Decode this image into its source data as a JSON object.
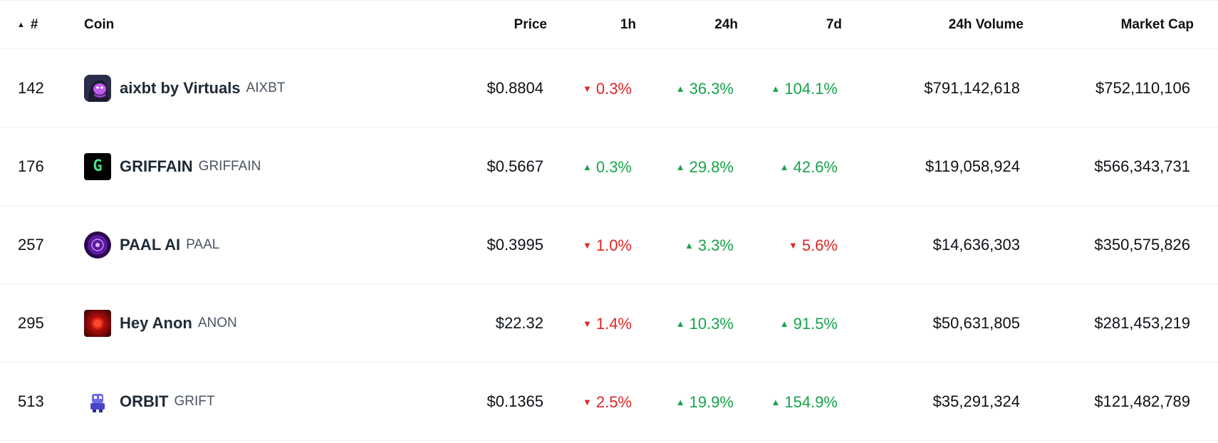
{
  "header": {
    "sort_arrow": "▲",
    "rank": "#",
    "coin": "Coin",
    "price": "Price",
    "h1": "1h",
    "h24": "24h",
    "d7": "7d",
    "volume": "24h Volume",
    "market_cap": "Market Cap"
  },
  "colors": {
    "up": "#16a34a",
    "down": "#e02424"
  },
  "rows": [
    {
      "rank": "142",
      "name": "aixbt by Virtuals",
      "symbol": "AIXBT",
      "logo": "aixbt-logo",
      "price": "$0.8804",
      "h1": {
        "value": "0.3%",
        "dir": "down",
        "arrow": "▼"
      },
      "h24": {
        "value": "36.3%",
        "dir": "up",
        "arrow": "▲"
      },
      "d7": {
        "value": "104.1%",
        "dir": "up",
        "arrow": "▲"
      },
      "volume": "$791,142,618",
      "market_cap": "$752,110,106"
    },
    {
      "rank": "176",
      "name": "GRIFFAIN",
      "symbol": "GRIFFAIN",
      "logo": "griffain-logo",
      "logo_text": "G",
      "price": "$0.5667",
      "h1": {
        "value": "0.3%",
        "dir": "up",
        "arrow": "▲"
      },
      "h24": {
        "value": "29.8%",
        "dir": "up",
        "arrow": "▲"
      },
      "d7": {
        "value": "42.6%",
        "dir": "up",
        "arrow": "▲"
      },
      "volume": "$119,058,924",
      "market_cap": "$566,343,731"
    },
    {
      "rank": "257",
      "name": "PAAL AI",
      "symbol": "PAAL",
      "logo": "paal-logo",
      "price": "$0.3995",
      "h1": {
        "value": "1.0%",
        "dir": "down",
        "arrow": "▼"
      },
      "h24": {
        "value": "3.3%",
        "dir": "up",
        "arrow": "▲"
      },
      "d7": {
        "value": "5.6%",
        "dir": "down",
        "arrow": "▼"
      },
      "volume": "$14,636,303",
      "market_cap": "$350,575,826"
    },
    {
      "rank": "295",
      "name": "Hey Anon",
      "symbol": "ANON",
      "logo": "anon-logo",
      "price": "$22.32",
      "h1": {
        "value": "1.4%",
        "dir": "down",
        "arrow": "▼"
      },
      "h24": {
        "value": "10.3%",
        "dir": "up",
        "arrow": "▲"
      },
      "d7": {
        "value": "91.5%",
        "dir": "up",
        "arrow": "▲"
      },
      "volume": "$50,631,805",
      "market_cap": "$281,453,219"
    },
    {
      "rank": "513",
      "name": "ORBIT",
      "symbol": "GRIFT",
      "logo": "orbit-logo",
      "price": "$0.1365",
      "h1": {
        "value": "2.5%",
        "dir": "down",
        "arrow": "▼"
      },
      "h24": {
        "value": "19.9%",
        "dir": "up",
        "arrow": "▲"
      },
      "d7": {
        "value": "154.9%",
        "dir": "up",
        "arrow": "▲"
      },
      "volume": "$35,291,324",
      "market_cap": "$121,482,789"
    }
  ]
}
